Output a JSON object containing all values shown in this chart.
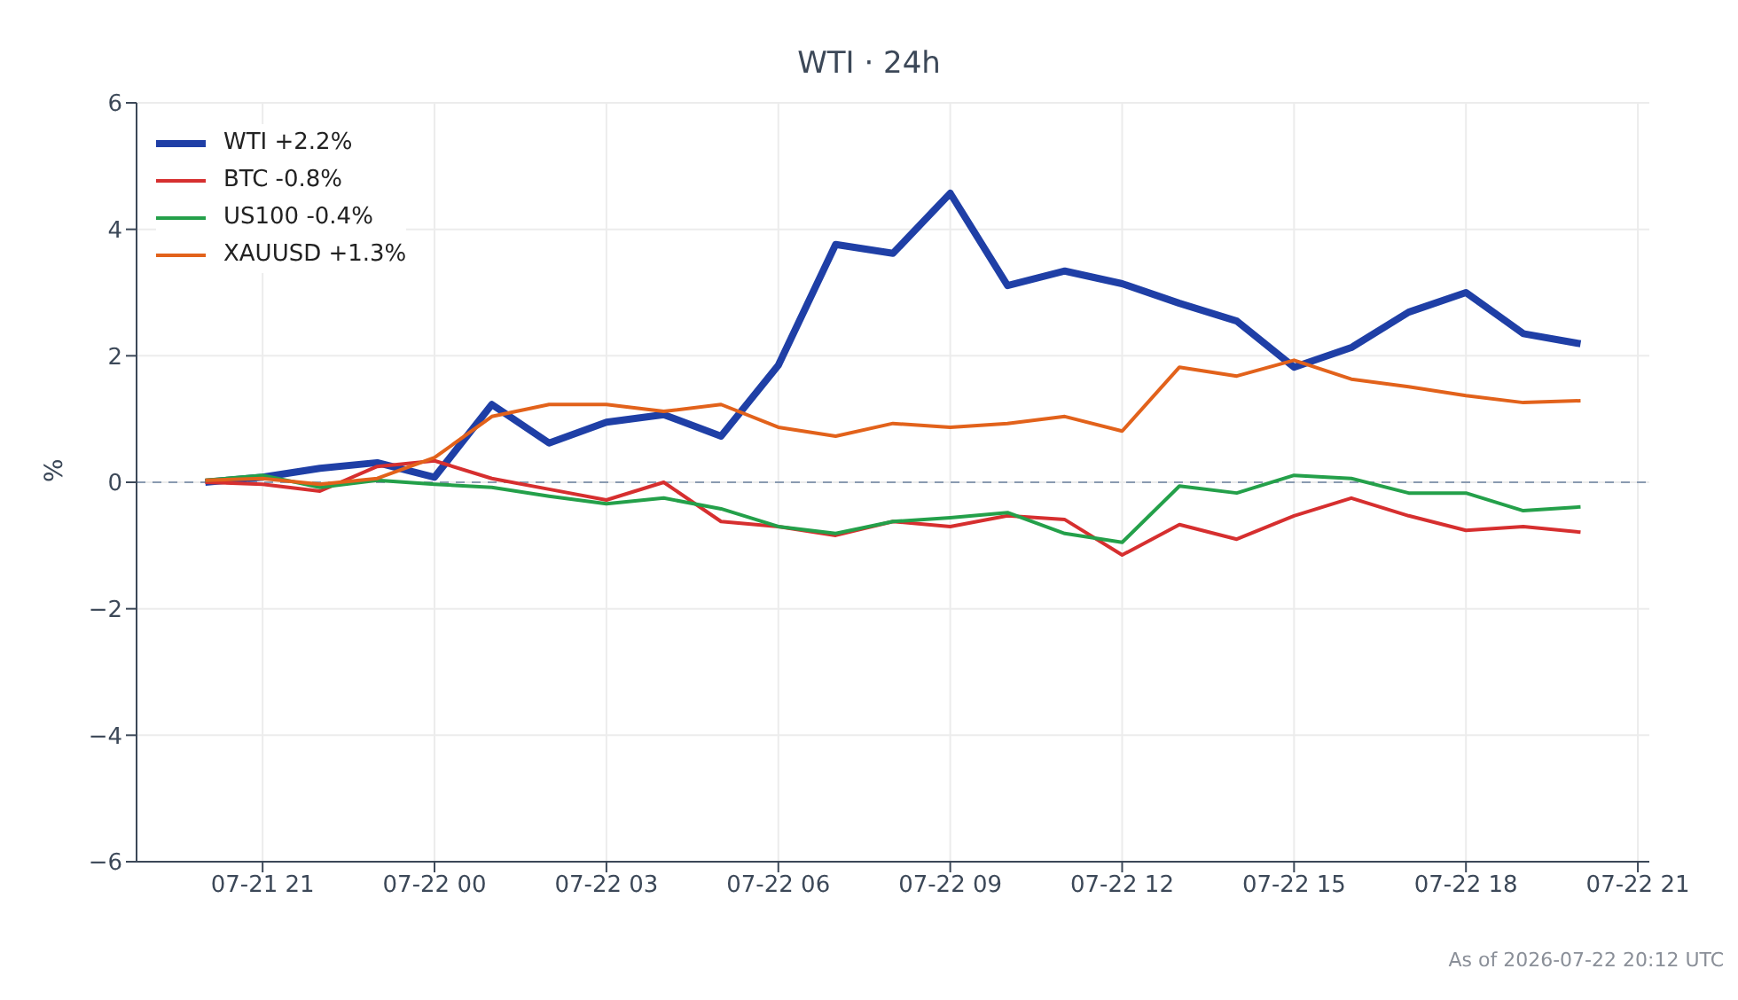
{
  "chart_data": {
    "type": "line",
    "title": "WTI · 24h",
    "ylabel": "%",
    "annotations": [
      "As of 2026-07-22 20:12 UTC"
    ],
    "x": [
      "2026-07-21T20:00",
      "2026-07-21T21:00",
      "2026-07-21T22:00",
      "2026-07-21T23:00",
      "2026-07-22T00:00",
      "2026-07-22T01:00",
      "2026-07-22T02:00",
      "2026-07-22T03:00",
      "2026-07-22T04:00",
      "2026-07-22T05:00",
      "2026-07-22T06:00",
      "2026-07-22T07:00",
      "2026-07-22T08:00",
      "2026-07-22T09:00",
      "2026-07-22T10:00",
      "2026-07-22T11:00",
      "2026-07-22T12:00",
      "2026-07-22T13:00",
      "2026-07-22T14:00",
      "2026-07-22T15:00",
      "2026-07-22T16:00",
      "2026-07-22T17:00",
      "2026-07-22T18:00",
      "2026-07-22T19:00",
      "2026-07-22T20:00"
    ],
    "series": [
      {
        "name": "WTI +2.2%",
        "color": "#1f3fa6",
        "values": [
          0.0,
          0.08,
          0.22,
          0.31,
          0.08,
          1.23,
          0.62,
          0.95,
          1.07,
          0.73,
          1.85,
          3.76,
          3.62,
          4.57,
          3.11,
          3.34,
          3.14,
          2.83,
          2.55,
          1.82,
          2.13,
          2.69,
          3.0,
          2.35,
          2.19
        ]
      },
      {
        "name": "BTC -0.8%",
        "color": "#d62f2f",
        "values": [
          0.0,
          -0.03,
          -0.14,
          0.25,
          0.34,
          0.06,
          -0.11,
          -0.28,
          0.0,
          -0.62,
          -0.7,
          -0.84,
          -0.62,
          -0.7,
          -0.53,
          -0.59,
          -1.15,
          -0.67,
          -0.9,
          -0.53,
          -0.25,
          -0.53,
          -0.76,
          -0.7,
          -0.79
        ]
      },
      {
        "name": "US100 -0.4%",
        "color": "#24a04a",
        "values": [
          0.03,
          0.11,
          -0.08,
          0.03,
          -0.03,
          -0.08,
          -0.22,
          -0.34,
          -0.25,
          -0.42,
          -0.7,
          -0.81,
          -0.62,
          -0.56,
          -0.48,
          -0.81,
          -0.95,
          -0.06,
          -0.17,
          0.11,
          0.06,
          -0.17,
          -0.17,
          -0.45,
          -0.39
        ]
      },
      {
        "name": "XAUUSD +1.3%",
        "color": "#e2621b",
        "values": [
          0.03,
          0.06,
          -0.03,
          0.06,
          0.39,
          1.04,
          1.23,
          1.23,
          1.12,
          1.23,
          0.87,
          0.73,
          0.93,
          0.87,
          0.93,
          1.04,
          0.81,
          1.82,
          1.68,
          1.93,
          1.63,
          1.51,
          1.37,
          1.26,
          1.29
        ]
      }
    ],
    "xlim": [
      "2026-07-21T18:48",
      "2026-07-22T21:12"
    ],
    "xticks": [
      {
        "value": "2026-07-21T21:00",
        "label": "07-21 21"
      },
      {
        "value": "2026-07-22T00:00",
        "label": "07-22 00"
      },
      {
        "value": "2026-07-22T03:00",
        "label": "07-22 03"
      },
      {
        "value": "2026-07-22T06:00",
        "label": "07-22 06"
      },
      {
        "value": "2026-07-22T09:00",
        "label": "07-22 09"
      },
      {
        "value": "2026-07-22T12:00",
        "label": "07-22 12"
      },
      {
        "value": "2026-07-22T15:00",
        "label": "07-22 15"
      },
      {
        "value": "2026-07-22T18:00",
        "label": "07-22 18"
      },
      {
        "value": "2026-07-22T21:00",
        "label": "07-22 21"
      }
    ],
    "ylim": [
      -6,
      6
    ],
    "yticks": [
      {
        "value": -6,
        "label": "−6"
      },
      {
        "value": -4,
        "label": "−4"
      },
      {
        "value": -2,
        "label": "−2"
      },
      0,
      2,
      4,
      6
    ],
    "ref_lines": [
      {
        "axis": "y",
        "value": 0,
        "color": "#8a9ab0",
        "line_style": "dashed"
      }
    ],
    "grid": true,
    "legend": "top left",
    "marker": "none"
  }
}
